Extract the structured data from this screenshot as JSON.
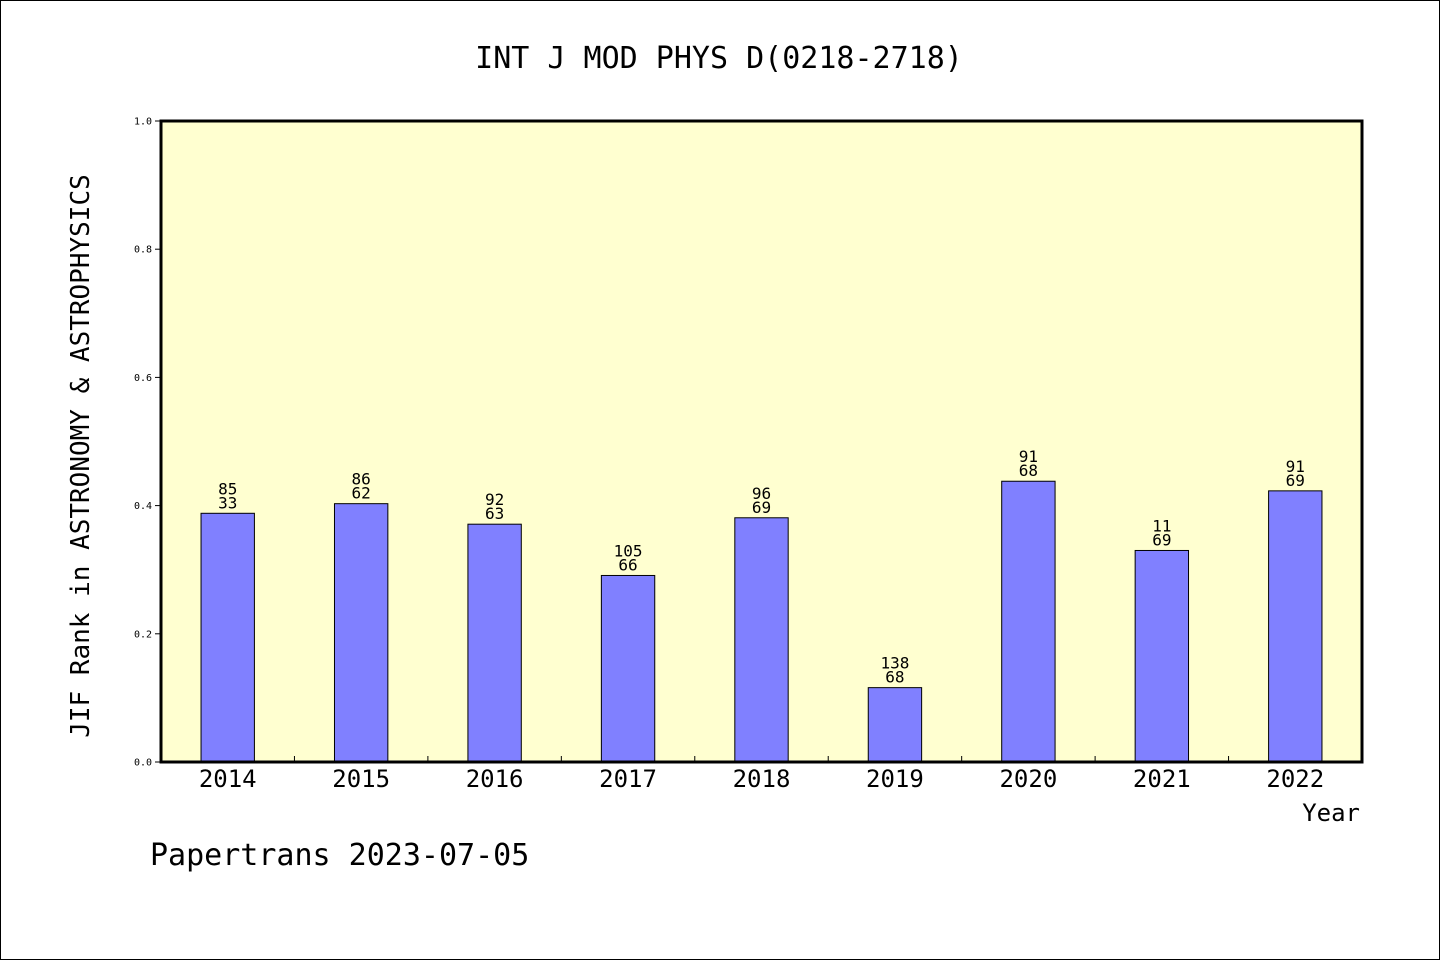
{
  "chart_data": {
    "type": "bar",
    "title": "INT J MOD PHYS D(0218-2718)",
    "xlabel": "Year",
    "ylabel": "JIF Rank in ASTRONOMY & ASTROPHYSICS",
    "categories": [
      "2014",
      "2015",
      "2016",
      "2017",
      "2018",
      "2019",
      "2020",
      "2021",
      "2022"
    ],
    "values": [
      0.388,
      0.403,
      0.371,
      0.291,
      0.381,
      0.116,
      0.438,
      0.33,
      0.423
    ],
    "bar_labels": [
      [
        "85",
        "33"
      ],
      [
        "86",
        "62"
      ],
      [
        "92",
        "63"
      ],
      [
        "105",
        "66"
      ],
      [
        "96",
        "69"
      ],
      [
        "138",
        "68"
      ],
      [
        "91",
        "68"
      ],
      [
        "11",
        "69"
      ],
      [
        "91",
        "69"
      ]
    ],
    "ylim": [
      0,
      1.0
    ],
    "yticks": [
      "0.0",
      "0.2",
      "0.4",
      "0.6",
      "0.8",
      "1.0"
    ],
    "grid": false,
    "colors": {
      "bar": "#8080ff",
      "plot_background": "#ffffd0",
      "axis": "#000000"
    }
  },
  "footer": {
    "text": "Papertrans 2023-07-05"
  }
}
